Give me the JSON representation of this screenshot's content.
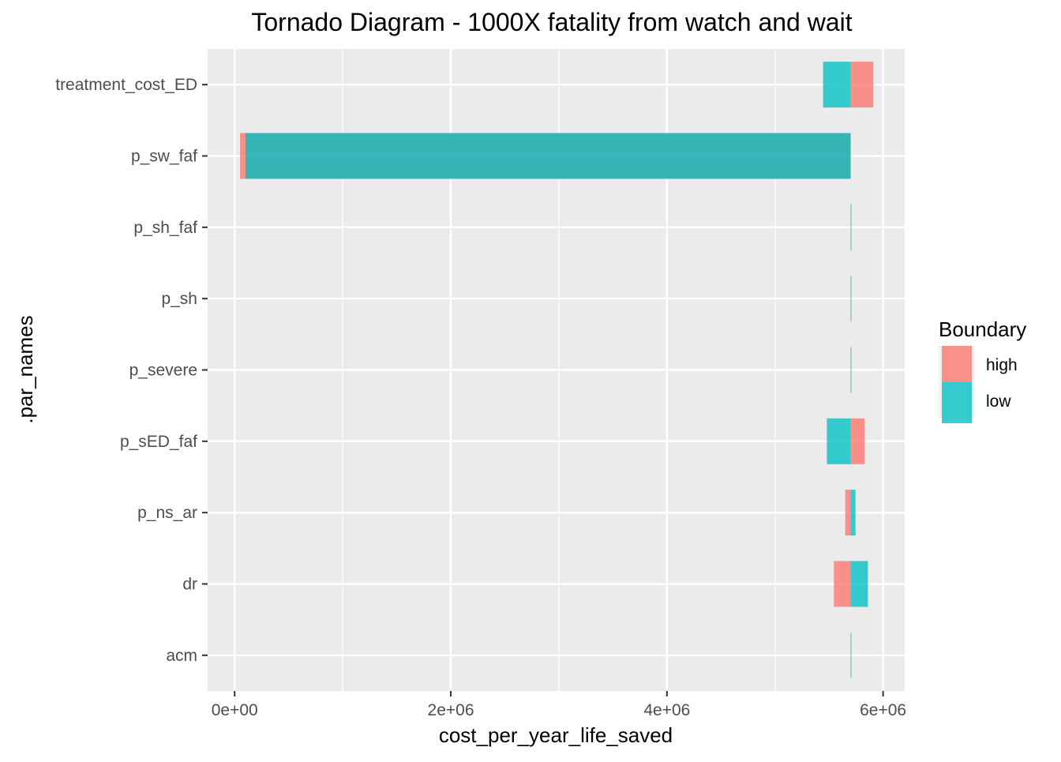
{
  "chart_data": {
    "type": "bar",
    "orientation": "horizontal",
    "title": "Tornado Diagram - 1000X fatality from watch and wait",
    "xlabel": "cost_per_year_life_saved",
    "ylabel": ".par_names",
    "base_value": 5700000,
    "xlim": [
      -250000,
      6200000
    ],
    "x_ticks": [
      0,
      2000000,
      4000000,
      6000000
    ],
    "x_tick_labels": [
      "0e+00",
      "2e+06",
      "4e+06",
      "6e+06"
    ],
    "categories": [
      "treatment_cost_ED",
      "p_sw_faf",
      "p_sh_faf",
      "p_sh",
      "p_severe",
      "p_sED_faf",
      "p_ns_ar",
      "dr",
      "acm"
    ],
    "series": [
      {
        "name": "high",
        "color": "#F8766D",
        "values": [
          5910000,
          50000,
          5700000,
          5700000,
          5700000,
          5830000,
          5650000,
          5545000,
          5700000
        ]
      },
      {
        "name": "low",
        "color": "#00BFC4",
        "values": [
          5445000,
          100000,
          5700000,
          5700000,
          5700000,
          5480000,
          5745000,
          5860000,
          5700000
        ]
      }
    ],
    "grid": true,
    "legend": {
      "title": "Boundary",
      "position": "right",
      "entries": [
        "high",
        "low"
      ]
    }
  }
}
